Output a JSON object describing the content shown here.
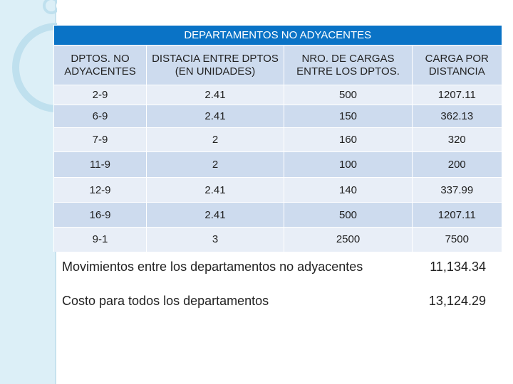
{
  "table": {
    "title": "DEPARTAMENTOS NO ADYACENTES",
    "headers": [
      "DPTOS. NO ADYACENTES",
      "DISTACIA ENTRE DPTOS (EN UNIDADES)",
      "NRO. DE CARGAS ENTRE LOS DPTOS.",
      "CARGA POR DISTANCIA"
    ],
    "rows": [
      [
        "2-9",
        "2.41",
        "500",
        "1207.11"
      ],
      [
        "6-9",
        "2.41",
        "150",
        "362.13"
      ],
      [
        "7-9",
        "2",
        "160",
        "320"
      ],
      [
        "11-9",
        "2",
        "100",
        "200"
      ],
      [
        "12-9",
        "2.41",
        "140",
        "337.99"
      ],
      [
        "16-9",
        "2.41",
        "500",
        "1207.11"
      ],
      [
        "9-1",
        "3",
        "2500",
        "7500"
      ]
    ]
  },
  "summary": [
    {
      "label": "Movimientos entre los departamentos no adyacentes",
      "value": "11,134.34"
    },
    {
      "label": "Costo para todos los departamentos",
      "value": "13,124.29"
    }
  ]
}
